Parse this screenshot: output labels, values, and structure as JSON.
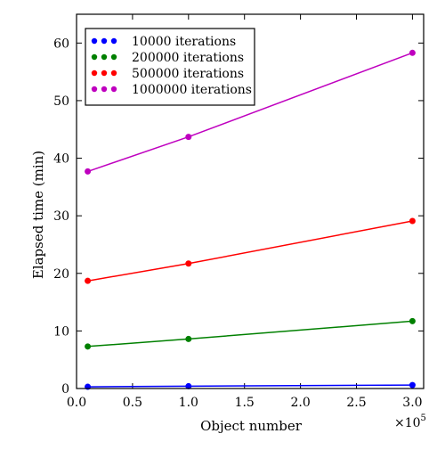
{
  "chart_data": {
    "type": "line",
    "xlabel": "Object number",
    "ylabel": "Elapsed time (min)",
    "x_multiplier_label": "×10",
    "x_multiplier_exponent": "5",
    "xlim": [
      0,
      3.1
    ],
    "ylim": [
      0,
      65
    ],
    "x_ticks": [
      0.0,
      0.5,
      1.0,
      1.5,
      2.0,
      2.5,
      3.0
    ],
    "x_tick_labels": [
      "0.0",
      "0.5",
      "1.0",
      "1.5",
      "2.0",
      "2.5",
      "3.0"
    ],
    "y_ticks": [
      0,
      10,
      20,
      30,
      40,
      50,
      60
    ],
    "y_tick_labels": [
      "0",
      "10",
      "20",
      "30",
      "40",
      "50",
      "60"
    ],
    "grid": false,
    "legend_position": "top-left",
    "x": [
      0.1,
      1.0,
      3.0
    ],
    "series": [
      {
        "name": "10000 iterations",
        "color": "#0000ff",
        "values": [
          0.3,
          0.4,
          0.6
        ]
      },
      {
        "name": "200000 iterations",
        "color": "#008000",
        "values": [
          7.3,
          8.6,
          11.7
        ]
      },
      {
        "name": "500000 iterations",
        "color": "#ff0000",
        "values": [
          18.7,
          21.7,
          29.1
        ]
      },
      {
        "name": "1000000 iterations",
        "color": "#bf00bf",
        "values": [
          37.7,
          43.7,
          58.3
        ]
      }
    ]
  }
}
